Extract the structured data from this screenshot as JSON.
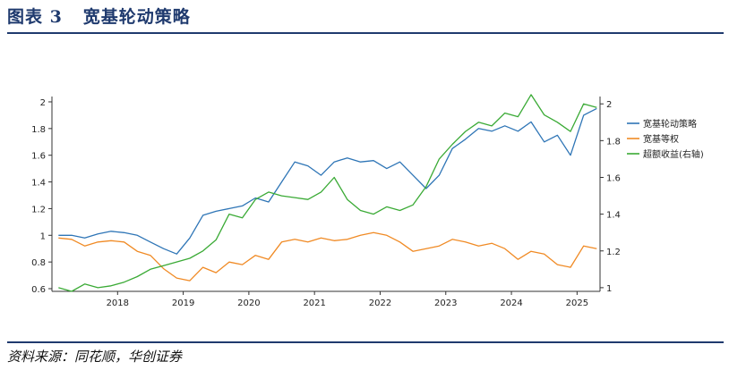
{
  "figure": {
    "label": "图表 3",
    "title_text": "宽基轮动策略",
    "source": "资料来源：同花顺，华创证券"
  },
  "colors": {
    "frame": "#1f3a6e",
    "series_strategy": "#2e75b6",
    "series_benchmark": "#f08a24",
    "series_excess": "#3aaa35"
  },
  "chart_data": {
    "type": "line",
    "title": "宽基轮动策略",
    "x": [
      2017.1,
      2017.3,
      2017.5,
      2017.7,
      2017.9,
      2018.1,
      2018.3,
      2018.5,
      2018.7,
      2018.9,
      2019.1,
      2019.3,
      2019.5,
      2019.7,
      2019.9,
      2020.1,
      2020.3,
      2020.5,
      2020.7,
      2020.9,
      2021.1,
      2021.3,
      2021.5,
      2021.7,
      2021.9,
      2022.1,
      2022.3,
      2022.5,
      2022.7,
      2022.9,
      2023.1,
      2023.3,
      2023.5,
      2023.7,
      2023.9,
      2024.1,
      2024.3,
      2024.5,
      2024.7,
      2024.9,
      2025.1,
      2025.3
    ],
    "x_ticks": [
      "2018",
      "2019",
      "2020",
      "2021",
      "2022",
      "2023",
      "2024",
      "2025"
    ],
    "x_tick_values": [
      2018,
      2019,
      2020,
      2021,
      2022,
      2023,
      2024,
      2025
    ],
    "xlim": [
      2017.0,
      2025.35
    ],
    "series": [
      {
        "name": "宽基轮动策略",
        "axis": "left",
        "values": [
          1.0,
          1.0,
          0.98,
          1.01,
          1.03,
          1.02,
          1.0,
          0.95,
          0.9,
          0.86,
          0.98,
          1.15,
          1.18,
          1.2,
          1.22,
          1.28,
          1.25,
          1.4,
          1.55,
          1.52,
          1.45,
          1.55,
          1.58,
          1.55,
          1.56,
          1.5,
          1.55,
          1.45,
          1.35,
          1.45,
          1.65,
          1.72,
          1.8,
          1.78,
          1.82,
          1.78,
          1.85,
          1.7,
          1.75,
          1.6,
          1.9,
          1.95
        ]
      },
      {
        "name": "宽基等权",
        "axis": "left",
        "values": [
          0.98,
          0.97,
          0.92,
          0.95,
          0.96,
          0.95,
          0.88,
          0.85,
          0.75,
          0.68,
          0.66,
          0.76,
          0.72,
          0.8,
          0.78,
          0.85,
          0.82,
          0.95,
          0.97,
          0.95,
          0.98,
          0.96,
          0.97,
          1.0,
          1.02,
          1.0,
          0.95,
          0.88,
          0.9,
          0.92,
          0.97,
          0.95,
          0.92,
          0.94,
          0.9,
          0.82,
          0.88,
          0.86,
          0.78,
          0.76,
          0.92,
          0.9
        ]
      },
      {
        "name": "超额收益(右轴)",
        "axis": "right",
        "values": [
          1.0,
          0.98,
          1.02,
          1.0,
          1.01,
          1.03,
          1.06,
          1.1,
          1.12,
          1.14,
          1.16,
          1.2,
          1.26,
          1.4,
          1.38,
          1.48,
          1.52,
          1.5,
          1.49,
          1.48,
          1.52,
          1.6,
          1.48,
          1.42,
          1.4,
          1.44,
          1.42,
          1.45,
          1.55,
          1.7,
          1.78,
          1.85,
          1.9,
          1.88,
          1.95,
          1.93,
          2.05,
          1.94,
          1.9,
          1.85,
          2.0,
          1.98
        ]
      }
    ],
    "y_left": {
      "lim": [
        0.58,
        2.04
      ],
      "ticks": [
        0.6,
        0.8,
        1.0,
        1.2,
        1.4,
        1.6,
        1.8,
        2.0
      ],
      "tick_labels": [
        "0.6",
        "0.8",
        "1",
        "1.2",
        "1.4",
        "1.6",
        "1.8",
        "2"
      ]
    },
    "y_right": {
      "lim": [
        0.98,
        2.04
      ],
      "ticks": [
        1.0,
        1.2,
        1.4,
        1.6,
        1.8,
        2.0
      ],
      "tick_labels": [
        "1",
        "1.2",
        "1.4",
        "1.6",
        "1.8",
        "2"
      ]
    },
    "legend": [
      "宽基轮动策略",
      "宽基等权",
      "超额收益(右轴)"
    ],
    "legend_position": "right"
  }
}
